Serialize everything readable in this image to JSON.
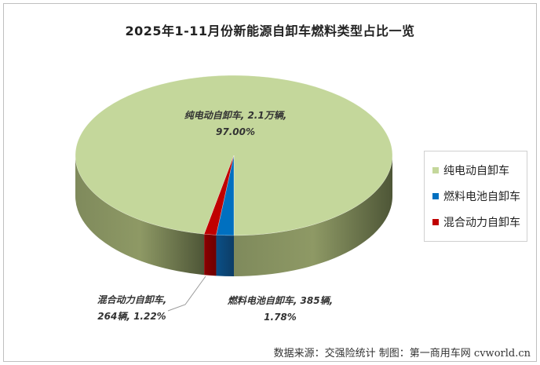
{
  "chart_data": {
    "type": "pie",
    "title": "2025年1-11月份新能源自卸车燃料类型占比一览",
    "slices": [
      {
        "name": "纯电动自卸车",
        "value": 97.0,
        "color": "#c4d79b",
        "label_line1": "纯电动自卸车, 2.1万辆,",
        "label_line2": "97.00%"
      },
      {
        "name": "燃料电池自卸车",
        "value": 1.78,
        "color": "#0070c0",
        "label_line1": "燃料电池自卸车, 385辆,",
        "label_line2": "1.78%"
      },
      {
        "name": "混合动力自卸车",
        "value": 1.22,
        "color": "#c00000",
        "label_line1": "混合动力自卸车,",
        "label_line2": "264辆, 1.22%"
      }
    ],
    "legend_position": "right"
  },
  "source_text": "数据来源：交强险统计 制图：第一商用车网 cvworld.cn"
}
